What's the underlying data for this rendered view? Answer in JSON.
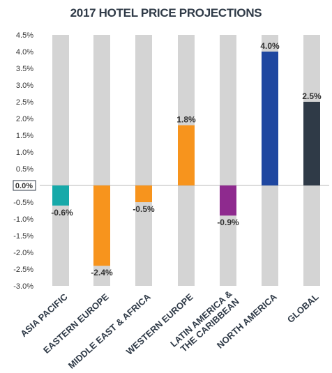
{
  "chart_data": {
    "type": "bar",
    "title": "2017 HOTEL PRICE PROJECTIONS",
    "categories": [
      [
        "ASIA PACIFIC"
      ],
      [
        "EASTERN EUROPE"
      ],
      [
        "MIDDLE EAST & AFRICA"
      ],
      [
        "WESTERN EUROPE"
      ],
      [
        "LATIN AMERICA &",
        "THE CARIBBEAN"
      ],
      [
        "NORTH AMERICA"
      ],
      [
        "GLOBAL"
      ]
    ],
    "values": [
      -0.6,
      -2.4,
      -0.5,
      1.8,
      -0.9,
      4.0,
      2.5
    ],
    "data_labels": [
      "-0.6%",
      "-2.4%",
      "-0.5%",
      "1.8%",
      "-0.9%",
      "4.0%",
      "2.5%"
    ],
    "colors": [
      "#17a9a9",
      "#f7941d",
      "#f7941d",
      "#f7941d",
      "#8e2a8e",
      "#1f47a0",
      "#2f3a47"
    ],
    "background_bar_color": "#d4d4d4",
    "y_ticks": [
      4.5,
      4.0,
      3.5,
      3.0,
      2.5,
      2.0,
      1.5,
      1.0,
      0.5,
      0.0,
      -0.5,
      -1.0,
      -1.5,
      -2.0,
      -2.5,
      -3.0
    ],
    "y_tick_labels": [
      "4.5%",
      "4.0%",
      "3.5%",
      "3.0%",
      "2.5%",
      "2.0%",
      "1.5%",
      "1.0%",
      "0.5%",
      "0.0%",
      "-0.5%",
      "-1.0%",
      "-1.5%",
      "-2.0%",
      "-2.5%",
      "-3.0%"
    ],
    "ylim": [
      -3.0,
      4.5
    ],
    "xlabel": "",
    "ylabel": "",
    "grid": false,
    "legend": "none"
  }
}
